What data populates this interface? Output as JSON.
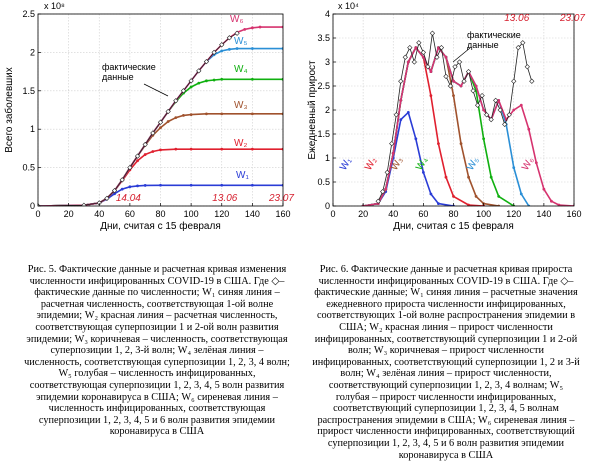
{
  "chart_data": [
    {
      "id": "left",
      "type": "line",
      "xlabel": "Дни, считая с 15 февраля",
      "ylabel": "Всего заболевших",
      "y_exponent": "x 10⁸",
      "xlim": [
        0,
        160
      ],
      "ylim": [
        0,
        2.5
      ],
      "xticks": [
        0,
        20,
        40,
        60,
        80,
        100,
        120,
        140,
        160
      ],
      "yticks": [
        0,
        0.5,
        1,
        1.5,
        2,
        2.5
      ],
      "ytick_labels": [
        "0",
        "0.5",
        "1",
        "1.5",
        "2",
        "2.5"
      ],
      "grid": true,
      "date_marks": [
        {
          "x": 59,
          "label": "14.04"
        },
        {
          "x": 122,
          "label": "13.06"
        },
        {
          "x": 159,
          "label": "23.07"
        }
      ],
      "annotation": "фактические\nданные",
      "series": [
        {
          "name": "W₁",
          "color": "#2a3cd6",
          "x": [
            0,
            30,
            40,
            45,
            50,
            55,
            60,
            65,
            70,
            80,
            100,
            120,
            140,
            160
          ],
          "y": [
            0,
            0.01,
            0.04,
            0.09,
            0.16,
            0.22,
            0.25,
            0.262,
            0.268,
            0.27,
            0.27,
            0.27,
            0.27,
            0.27
          ]
        },
        {
          "name": "W₂",
          "color": "#e0202f",
          "x": [
            0,
            30,
            40,
            45,
            50,
            55,
            60,
            65,
            70,
            75,
            80,
            90,
            100,
            120,
            140,
            160
          ],
          "y": [
            0,
            0.01,
            0.04,
            0.1,
            0.2,
            0.33,
            0.47,
            0.59,
            0.67,
            0.71,
            0.73,
            0.74,
            0.74,
            0.74,
            0.74,
            0.74
          ]
        },
        {
          "name": "W₃",
          "color": "#a0522d",
          "x": [
            0,
            30,
            40,
            45,
            50,
            55,
            60,
            65,
            70,
            75,
            80,
            85,
            90,
            95,
            100,
            110,
            120,
            140,
            160
          ],
          "y": [
            0,
            0.01,
            0.04,
            0.1,
            0.2,
            0.34,
            0.5,
            0.65,
            0.79,
            0.92,
            1.02,
            1.1,
            1.15,
            1.18,
            1.19,
            1.2,
            1.2,
            1.2,
            1.2
          ]
        },
        {
          "name": "W₄",
          "color": "#10b010",
          "x": [
            0,
            30,
            40,
            45,
            50,
            55,
            60,
            65,
            70,
            75,
            80,
            85,
            90,
            95,
            100,
            105,
            110,
            115,
            120,
            140,
            160
          ],
          "y": [
            0,
            0.01,
            0.04,
            0.1,
            0.2,
            0.34,
            0.5,
            0.65,
            0.8,
            0.95,
            1.09,
            1.23,
            1.36,
            1.47,
            1.55,
            1.6,
            1.63,
            1.64,
            1.65,
            1.65,
            1.65
          ]
        },
        {
          "name": "W₅",
          "color": "#2a8fd6",
          "x": [
            0,
            30,
            40,
            45,
            50,
            55,
            60,
            65,
            70,
            75,
            80,
            85,
            90,
            95,
            100,
            105,
            110,
            115,
            120,
            125,
            130,
            140,
            160
          ],
          "y": [
            0,
            0.01,
            0.04,
            0.1,
            0.2,
            0.34,
            0.5,
            0.65,
            0.8,
            0.95,
            1.09,
            1.23,
            1.37,
            1.5,
            1.63,
            1.76,
            1.88,
            1.97,
            2.02,
            2.04,
            2.05,
            2.05,
            2.05
          ]
        },
        {
          "name": "W₆",
          "color": "#d6336f",
          "x": [
            0,
            30,
            40,
            45,
            50,
            55,
            60,
            65,
            70,
            75,
            80,
            85,
            90,
            95,
            100,
            105,
            110,
            115,
            120,
            125,
            130,
            135,
            140,
            145,
            160
          ],
          "y": [
            0,
            0.01,
            0.04,
            0.1,
            0.2,
            0.34,
            0.5,
            0.65,
            0.8,
            0.95,
            1.09,
            1.23,
            1.37,
            1.5,
            1.63,
            1.76,
            1.88,
            2.0,
            2.1,
            2.19,
            2.26,
            2.3,
            2.32,
            2.33,
            2.33
          ]
        }
      ],
      "actual": {
        "x": [
          0,
          30,
          40,
          45,
          50,
          55,
          60,
          65,
          70,
          75,
          80,
          85,
          90,
          95,
          100,
          105,
          110,
          115,
          120,
          125,
          130
        ],
        "y": [
          0,
          0.01,
          0.04,
          0.1,
          0.2,
          0.34,
          0.5,
          0.65,
          0.8,
          0.95,
          1.09,
          1.23,
          1.37,
          1.5,
          1.63,
          1.76,
          1.88,
          2.0,
          2.1,
          2.19,
          2.25
        ]
      },
      "series_labels": [
        "W₆",
        "W₅",
        "W₄",
        "W₃",
        "W₂",
        "W₁"
      ]
    },
    {
      "id": "right",
      "type": "line",
      "xlabel": "Дни, считая с 15 февраля",
      "ylabel": "Ежедневный прирост",
      "y_exponent": "x 10⁴",
      "xlim": [
        0,
        160
      ],
      "ylim": [
        0,
        4
      ],
      "xticks": [
        0,
        20,
        40,
        60,
        80,
        100,
        120,
        140,
        160
      ],
      "yticks": [
        0,
        0.5,
        1,
        1.5,
        2,
        2.5,
        3,
        3.5,
        4
      ],
      "ytick_labels": [
        "0",
        "0.5",
        "1",
        "1.5",
        "2",
        "2.5",
        "3",
        "3.5",
        "4"
      ],
      "grid": true,
      "date_marks": [
        {
          "x": 122,
          "label": "13.06"
        },
        {
          "x": 159,
          "label": "23.07"
        }
      ],
      "annotation": "фактические\nданные",
      "series": [
        {
          "name": "W₁",
          "color": "#2a3cd6",
          "x": [
            20,
            30,
            35,
            40,
            45,
            50,
            55,
            60,
            65,
            70,
            80
          ],
          "y": [
            0,
            0.05,
            0.3,
            1.0,
            1.8,
            1.95,
            1.4,
            0.7,
            0.25,
            0.05,
            0
          ]
        },
        {
          "name": "W₂",
          "color": "#e0202f",
          "x": [
            20,
            30,
            35,
            40,
            45,
            50,
            55,
            60,
            65,
            70,
            75,
            80,
            90,
            100
          ],
          "y": [
            0,
            0.05,
            0.35,
            1.1,
            2.2,
            3.0,
            3.3,
            3.1,
            2.3,
            1.3,
            0.6,
            0.2,
            0.02,
            0
          ]
        },
        {
          "name": "W₃",
          "color": "#a0522d",
          "x": [
            20,
            30,
            35,
            40,
            45,
            50,
            55,
            60,
            65,
            70,
            75,
            80,
            85,
            90,
            95,
            100,
            110
          ],
          "y": [
            0,
            0.05,
            0.35,
            1.1,
            2.2,
            3.0,
            3.3,
            3.1,
            2.8,
            3.3,
            3.1,
            2.3,
            1.3,
            0.6,
            0.2,
            0.05,
            0
          ]
        },
        {
          "name": "W₄",
          "color": "#10b010",
          "x": [
            20,
            30,
            35,
            40,
            45,
            50,
            55,
            60,
            65,
            70,
            75,
            80,
            85,
            90,
            95,
            100,
            105,
            110,
            120
          ],
          "y": [
            0,
            0.05,
            0.35,
            1.1,
            2.2,
            3.0,
            3.3,
            3.1,
            2.8,
            3.3,
            3.1,
            2.6,
            2.5,
            2.8,
            2.4,
            1.4,
            0.6,
            0.2,
            0
          ]
        },
        {
          "name": "W₅",
          "color": "#2a8fd6",
          "x": [
            20,
            30,
            35,
            40,
            45,
            50,
            55,
            60,
            65,
            70,
            75,
            80,
            85,
            90,
            95,
            100,
            105,
            110,
            115,
            120,
            125,
            130
          ],
          "y": [
            0,
            0.05,
            0.35,
            1.1,
            2.2,
            3.0,
            3.3,
            3.1,
            2.8,
            3.3,
            3.1,
            2.6,
            2.5,
            2.8,
            2.5,
            2.0,
            1.8,
            2.2,
            1.7,
            0.8,
            0.25,
            0
          ]
        },
        {
          "name": "W₆",
          "color": "#d6336f",
          "x": [
            20,
            30,
            35,
            40,
            45,
            50,
            55,
            60,
            65,
            70,
            75,
            80,
            85,
            90,
            95,
            100,
            105,
            110,
            115,
            120,
            125,
            130,
            135,
            140,
            145,
            150,
            160
          ],
          "y": [
            0,
            0.05,
            0.35,
            1.1,
            2.2,
            3.0,
            3.3,
            3.1,
            2.8,
            3.3,
            3.1,
            2.6,
            2.5,
            2.8,
            2.5,
            2.0,
            1.8,
            2.2,
            1.8,
            2.0,
            2.1,
            1.6,
            0.9,
            0.35,
            0.1,
            0.02,
            0
          ]
        }
      ],
      "actual": {
        "x": [
          30,
          33,
          36,
          39,
          42,
          45,
          48,
          51,
          54,
          57,
          60,
          63,
          66,
          69,
          72,
          75,
          78,
          81,
          84,
          87,
          90,
          93,
          96,
          99,
          102,
          105,
          108,
          111,
          114,
          117,
          120,
          123,
          126,
          129,
          132
        ],
        "y": [
          0.1,
          0.3,
          0.7,
          1.3,
          1.9,
          2.6,
          3.1,
          3.3,
          3.0,
          3.4,
          3.2,
          2.9,
          3.6,
          3.1,
          3.3,
          2.7,
          2.5,
          2.9,
          3.0,
          2.6,
          2.8,
          2.4,
          2.1,
          2.3,
          1.9,
          1.8,
          2.2,
          2.0,
          1.7,
          1.9,
          2.6,
          3.3,
          3.4,
          2.9,
          2.6
        ]
      },
      "series_labels": [
        "W₁",
        "W₂",
        "W₃",
        "W₄",
        "W₅",
        "W₆"
      ]
    }
  ],
  "captions": {
    "left": "Рис. 5. Фактические данные и расчетная кривая изменения численности инфицированных COVID-19 в США. Где ◇– фактические данные по численности; W₁ синяя линия – расчетная численность, соответствующая 1-ой волне эпидемии; W₂ красная линия – расчетная численность, соответствующая суперпозиции 1 и 2-ой волн развития эпидемии; W₃ коричневая – численность, соответствующая суперпозиции 1, 2, 3-й волн; W₄ зелёная линия – численность, соответствующая суперпозиции 1, 2, 3, 4 волн; W₅ голубая – численность инфицированных, соответствующая суперпозиции 1, 2, 3, 4, 5 волн развития эпидемии коронавируса в США; W₆ сиреневая линия – численность инфицированных, соответствующая суперпозиции 1, 2, 3, 4, 5 и 6 волн развития эпидемии коронавируса в США",
    "right": "Рис. 6. Фактические данные и расчетная кривая прироста численности инфицированных COVID-19 в США. Где ◇– фактические данные; W₁ синяя линия – расчетные значения ежедневного прироста численности инфицированных, соответствующих 1-ой волне распространения эпидемии в США; W₂ красная линия – прирост численности инфицированных, соответствующий суперпозиции 1 и 2-ой волн; W₃ коричневая – прирост численности инфицированных, соответствующий суперпозиции 1, 2 и 3-й волн; W₄ зелёная линия – прирост численности, соответствующий суперпозиции 1, 2, 3, 4 волнам; W₅ голубая – прирост численности инфицированных, соответствующий суперпозиции 1, 2, 3, 4, 5 волнам распространения эпидемии в США; W₆ сиреневая линия – прирост численности инфицированных, соответствующий суперпозиции 1, 2, 3, 4, 5 и 6 волн развития эпидемии коронавируса в США"
  }
}
